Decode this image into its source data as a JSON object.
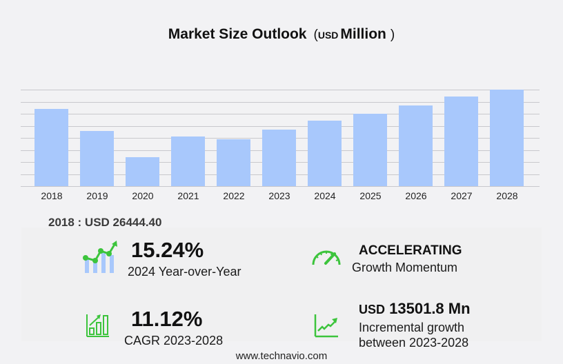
{
  "header": {
    "title": "Market Size Outlook",
    "paren_open": "(",
    "unit_small": "USD",
    "unit_big": "Million",
    "paren_close": ")"
  },
  "chart_data": {
    "type": "bar",
    "title": "Market Size Outlook (USD Million)",
    "xlabel": "",
    "ylabel": "USD Million",
    "categories": [
      "2018",
      "2019",
      "2020",
      "2021",
      "2022",
      "2023",
      "2024",
      "2025",
      "2026",
      "2027",
      "2028"
    ],
    "values": [
      26444.4,
      18890,
      9920,
      17000,
      16050,
      19400,
      22360,
      24850,
      27620,
      30680,
      32900
    ],
    "ylim": [
      0,
      33000
    ],
    "grid": true,
    "legend": "none",
    "bar_color": "#a8c8fc"
  },
  "base_year": {
    "label": "2018 : USD  26444.40"
  },
  "kpis": {
    "yoy": {
      "value": "15.24%",
      "label": "2024 Year-over-Year"
    },
    "momentum": {
      "value": "ACCELERATING",
      "label": "Growth Momentum"
    },
    "cagr": {
      "value": "11.12%",
      "label": "CAGR 2023-2028"
    },
    "incremental": {
      "prefix": "USD",
      "value": "13501.8 Mn",
      "label_line1": "Incremental growth",
      "label_line2": "between 2023-2028"
    }
  },
  "colors": {
    "accent_green": "#3cc43c",
    "bar_blue": "#a8c8fc"
  },
  "footer": {
    "url": "www.technavio.com"
  }
}
